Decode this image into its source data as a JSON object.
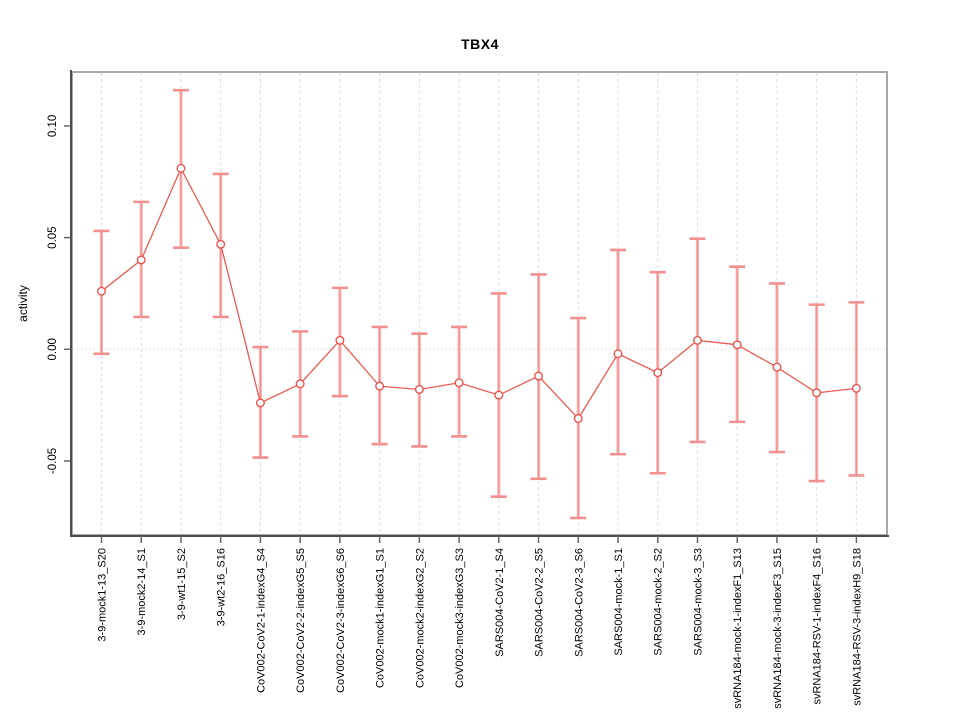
{
  "page": {
    "title": "TBX4"
  },
  "colors": {
    "point_stroke": "#e8534e",
    "series_line": "#ec5a53",
    "errorbar_line": "#f28b8b",
    "errorbar_cap": "#f29090",
    "errorbar_soft": "#f7b9b9",
    "grid": "#dcdcdc",
    "zero_line": "#d8d8d8",
    "axis": "#4d4d4d",
    "box_border": "#a8a8a8",
    "tick": "#666666",
    "label": "#000000"
  },
  "chart_data": {
    "type": "line",
    "subtype": "points-with-error-bars",
    "title": "TBX4",
    "xlabel": "",
    "ylabel": "activity",
    "ylim": [
      -0.0836,
      0.1246
    ],
    "y_ticks": [
      -0.05,
      0.0,
      0.05,
      0.1
    ],
    "y_tick_labels": [
      "-0.05",
      "0.00",
      "0.05",
      "0.10"
    ],
    "grid": "vertical dashed gridline at each category; dotted horizontal line at y=0",
    "legend": "none",
    "categories": [
      "3-9-mock1-13_S20",
      "3-9-mock2-14_S1",
      "3-9-wt1-15_S2",
      "3-9-wt2-16_S16",
      "CoV002-CoV2-1-indexG4_S4",
      "CoV002-CoV2-2-indexG5_S5",
      "CoV002-CoV2-3-indexG6_S6",
      "CoV002-mock1-indexG1_S1",
      "CoV002-mock2-indexG2_S2",
      "CoV002-mock3-indexG3_S3",
      "SARS004-CoV2-1_S4",
      "SARS004-CoV2-2_S5",
      "SARS004-CoV2-3_S6",
      "SARS004-mock-1_S1",
      "SARS004-mock-2_S2",
      "SARS004-mock-3_S3",
      "svRNA184-mock-1-indexF1_S13",
      "svRNA184-mock-3-indexF3_S15",
      "svRNA184-RSV-1-indexF4_S16",
      "svRNA184-RSV-3-indexH9_S18"
    ],
    "series": [
      {
        "name": "activity",
        "values": [
          0.026,
          0.04,
          0.081,
          0.047,
          -0.024,
          -0.0155,
          0.004,
          -0.0165,
          -0.018,
          -0.015,
          -0.0205,
          -0.012,
          -0.031,
          -0.002,
          -0.0105,
          0.004,
          0.002,
          -0.008,
          -0.0195,
          -0.0175
        ],
        "ci_high": [
          0.053,
          0.066,
          0.116,
          0.0785,
          0.001,
          0.008,
          0.0275,
          0.01,
          0.007,
          0.01,
          0.025,
          0.0335,
          0.014,
          0.0445,
          0.0345,
          0.0495,
          0.037,
          0.0295,
          0.02,
          0.021
        ],
        "ci_low": [
          -0.002,
          0.0145,
          0.0455,
          0.0145,
          -0.0485,
          -0.039,
          -0.021,
          -0.0425,
          -0.0435,
          -0.039,
          -0.066,
          -0.058,
          -0.0755,
          -0.047,
          -0.0555,
          -0.0415,
          -0.0325,
          -0.046,
          -0.059,
          -0.0565
        ]
      }
    ]
  }
}
